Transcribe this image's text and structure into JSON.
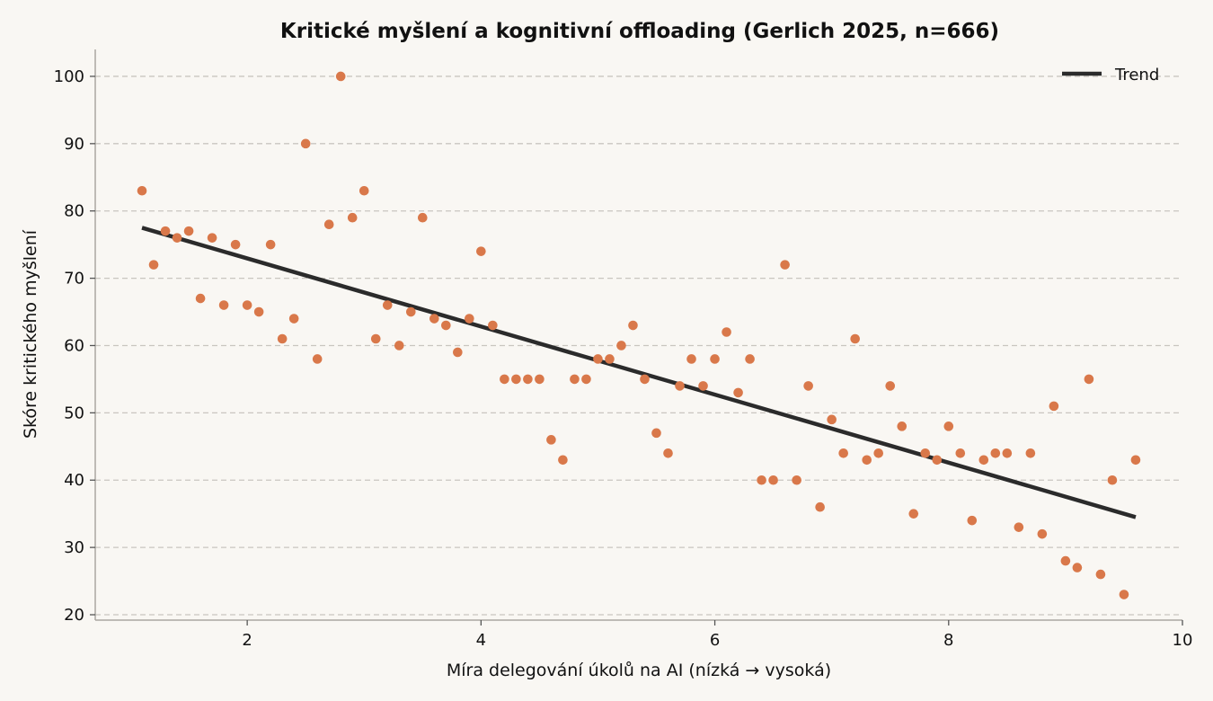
{
  "chart_data": {
    "type": "scatter",
    "title": "Kritické myšlení a kognitivní offloading (Gerlich 2025, n=666)",
    "xlabel": "Míra delegování úkolů na AI (nízká → vysoká)",
    "ylabel": "Skóre kritického myšlení",
    "xlim": [
      0.7,
      10.0
    ],
    "ylim": [
      19.2,
      104
    ],
    "xticks": [
      2,
      4,
      6,
      8,
      10
    ],
    "yticks": [
      20,
      30,
      40,
      50,
      60,
      70,
      80,
      90,
      100
    ],
    "grid": "horizontal dashed",
    "legend_position": "top-right",
    "point_color": "#d9784a",
    "trend_color": "#2b2b2b",
    "series": [
      {
        "type": "scatter",
        "points": [
          [
            1.1,
            83
          ],
          [
            1.2,
            72
          ],
          [
            1.3,
            77
          ],
          [
            1.4,
            76
          ],
          [
            1.5,
            77
          ],
          [
            1.6,
            67
          ],
          [
            1.7,
            76
          ],
          [
            1.8,
            66
          ],
          [
            1.9,
            75
          ],
          [
            2.0,
            66
          ],
          [
            2.1,
            65
          ],
          [
            2.2,
            75
          ],
          [
            2.3,
            61
          ],
          [
            2.4,
            64
          ],
          [
            2.5,
            90
          ],
          [
            2.6,
            58
          ],
          [
            2.7,
            78
          ],
          [
            2.8,
            100
          ],
          [
            2.9,
            79
          ],
          [
            3.0,
            83
          ],
          [
            3.1,
            61
          ],
          [
            3.2,
            66
          ],
          [
            3.3,
            60
          ],
          [
            3.4,
            65
          ],
          [
            3.5,
            79
          ],
          [
            3.6,
            64
          ],
          [
            3.7,
            63
          ],
          [
            3.8,
            59
          ],
          [
            3.9,
            64
          ],
          [
            4.0,
            74
          ],
          [
            4.1,
            63
          ],
          [
            4.2,
            55
          ],
          [
            4.3,
            55
          ],
          [
            4.4,
            55
          ],
          [
            4.5,
            55
          ],
          [
            4.6,
            46
          ],
          [
            4.7,
            43
          ],
          [
            4.8,
            55
          ],
          [
            4.9,
            55
          ],
          [
            5.0,
            58
          ],
          [
            5.1,
            58
          ],
          [
            5.2,
            60
          ],
          [
            5.3,
            63
          ],
          [
            5.4,
            55
          ],
          [
            5.5,
            47
          ],
          [
            5.6,
            44
          ],
          [
            5.7,
            54
          ],
          [
            5.8,
            58
          ],
          [
            5.9,
            54
          ],
          [
            6.0,
            58
          ],
          [
            6.1,
            62
          ],
          [
            6.2,
            53
          ],
          [
            6.3,
            58
          ],
          [
            6.4,
            40
          ],
          [
            6.5,
            40
          ],
          [
            6.6,
            72
          ],
          [
            6.7,
            40
          ],
          [
            6.8,
            54
          ],
          [
            6.9,
            36
          ],
          [
            7.0,
            49
          ],
          [
            7.1,
            44
          ],
          [
            7.2,
            61
          ],
          [
            7.3,
            43
          ],
          [
            7.4,
            44
          ],
          [
            7.5,
            54
          ],
          [
            7.6,
            48
          ],
          [
            7.7,
            35
          ],
          [
            7.8,
            44
          ],
          [
            7.9,
            43
          ],
          [
            8.0,
            48
          ],
          [
            8.1,
            44
          ],
          [
            8.2,
            34
          ],
          [
            8.3,
            43
          ],
          [
            8.4,
            44
          ],
          [
            8.5,
            44
          ],
          [
            8.6,
            33
          ],
          [
            8.7,
            44
          ],
          [
            8.8,
            32
          ],
          [
            8.9,
            51
          ],
          [
            9.0,
            28
          ],
          [
            9.1,
            27
          ],
          [
            9.2,
            55
          ],
          [
            9.3,
            26
          ],
          [
            9.4,
            40
          ],
          [
            9.5,
            23
          ],
          [
            9.6,
            43
          ]
        ]
      },
      {
        "name": "Trend",
        "type": "line",
        "points": [
          [
            1.1,
            77.5
          ],
          [
            9.6,
            34.5
          ]
        ]
      }
    ]
  }
}
